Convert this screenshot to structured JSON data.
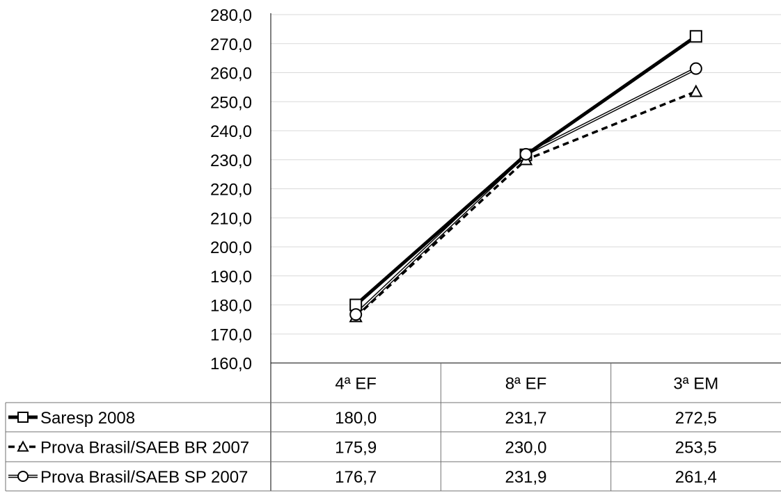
{
  "chart_data": {
    "type": "line",
    "title": "",
    "xlabel": "",
    "ylabel": "",
    "categories": [
      "4ª EF",
      "8ª EF",
      "3ª EM"
    ],
    "ylim": [
      160,
      280
    ],
    "ytick_step": 10,
    "ytick_labels": [
      "160,0",
      "170,0",
      "180,0",
      "190,0",
      "200,0",
      "210,0",
      "220,0",
      "230,0",
      "240,0",
      "250,0",
      "260,0",
      "270,0",
      "280,0"
    ],
    "grid": true,
    "legend": "data-table-below",
    "series": [
      {
        "name": "Saresp 2008",
        "marker": "square",
        "line": "thick-solid",
        "color": "#000000",
        "values": [
          180.0,
          231.7,
          272.5
        ],
        "labels": [
          "180,0",
          "231,7",
          "272,5"
        ]
      },
      {
        "name": "Prova Brasil/SAEB BR 2007",
        "marker": "triangle",
        "line": "dashed",
        "color": "#000000",
        "values": [
          175.9,
          230.0,
          253.5
        ],
        "labels": [
          "175,9",
          "230,0",
          "253,5"
        ]
      },
      {
        "name": "Prova Brasil/SAEB SP 2007",
        "marker": "circle",
        "line": "double-thin",
        "color": "#000000",
        "values": [
          176.7,
          231.9,
          261.4
        ],
        "labels": [
          "176,7",
          "231,9",
          "261,4"
        ]
      }
    ]
  }
}
